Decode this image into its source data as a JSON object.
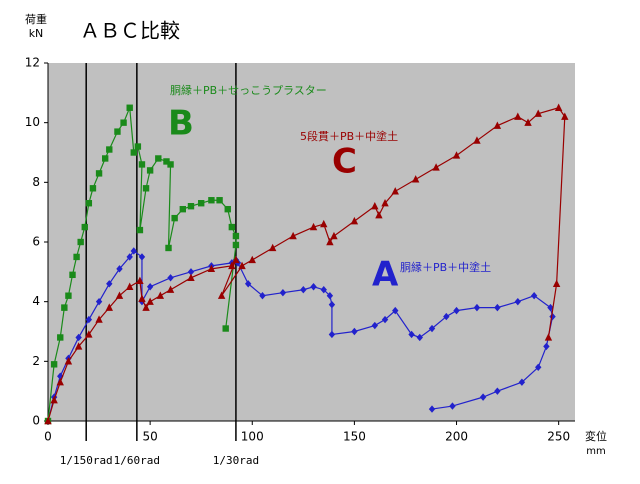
{
  "chart_data": {
    "type": "line",
    "title": "ＡＢＣ比較",
    "y_label": [
      "荷重",
      "kN"
    ],
    "x_label": [
      "変位",
      "mm"
    ],
    "xlim": [
      0,
      258
    ],
    "ylim": [
      0,
      12
    ],
    "xticks": [
      0,
      50,
      100,
      150,
      200,
      250
    ],
    "yticks": [
      0,
      2,
      4,
      6,
      8,
      10,
      12
    ],
    "grid": false,
    "reference_lines": [
      {
        "x": 18.7,
        "label": "1/150rad"
      },
      {
        "x": 43.5,
        "label": "1/60rad"
      },
      {
        "x": 92,
        "label": "1/30rad"
      }
    ],
    "annotations": [
      {
        "text": "胴縁＋PB＋せっこうプラスター",
        "color": "#1a8a1a"
      },
      {
        "text": "B",
        "color": "#1a8a1a"
      },
      {
        "text": "5段貫＋PB＋中塗土",
        "color": "#990000"
      },
      {
        "text": "C",
        "color": "#990000"
      },
      {
        "text": "胴縁＋PB＋中塗土",
        "color": "#2222cc"
      },
      {
        "text": "A",
        "color": "#2222cc"
      }
    ],
    "series": [
      {
        "name": "A",
        "color": "#2222cc",
        "marker": "diamond",
        "x": [
          0,
          3,
          6,
          10,
          15,
          20,
          25,
          30,
          35,
          40,
          42,
          46,
          46,
          50,
          60,
          70,
          80,
          90,
          92,
          93,
          98,
          105,
          115,
          125,
          130,
          135,
          138,
          139,
          139,
          150,
          160,
          165,
          170,
          178,
          182,
          188,
          195,
          200,
          210,
          220,
          230,
          238,
          246,
          247,
          244,
          240,
          232,
          220,
          213,
          198,
          188
        ],
        "values": [
          0,
          0.8,
          1.5,
          2.1,
          2.8,
          3.4,
          4.0,
          4.6,
          5.1,
          5.5,
          5.7,
          5.5,
          4.0,
          4.5,
          4.8,
          5.0,
          5.2,
          5.3,
          5.4,
          5.3,
          4.6,
          4.2,
          4.3,
          4.4,
          4.5,
          4.4,
          4.2,
          3.9,
          2.9,
          3.0,
          3.2,
          3.4,
          3.7,
          2.9,
          2.8,
          3.1,
          3.5,
          3.7,
          3.8,
          3.8,
          4.0,
          4.2,
          3.8,
          3.5,
          2.5,
          1.8,
          1.3,
          1.0,
          0.8,
          0.5,
          0.4
        ]
      },
      {
        "name": "B",
        "color": "#1a8a1a",
        "marker": "square",
        "x": [
          0,
          3,
          6,
          8,
          10,
          12,
          14,
          16,
          18,
          20,
          22,
          25,
          28,
          30,
          34,
          37,
          40,
          42,
          44,
          46,
          45,
          48,
          50,
          54,
          58,
          60,
          59,
          62,
          66,
          70,
          75,
          80,
          84,
          88,
          90,
          92,
          92,
          87
        ],
        "values": [
          0,
          1.9,
          2.8,
          3.8,
          4.2,
          4.9,
          5.5,
          6.0,
          6.5,
          7.3,
          7.8,
          8.3,
          8.8,
          9.1,
          9.7,
          10.0,
          10.5,
          9.0,
          9.2,
          8.6,
          6.4,
          7.8,
          8.4,
          8.8,
          8.7,
          8.6,
          5.8,
          6.8,
          7.1,
          7.2,
          7.3,
          7.4,
          7.4,
          7.1,
          6.5,
          6.2,
          5.9,
          3.1
        ]
      },
      {
        "name": "C",
        "color": "#990000",
        "marker": "triangle",
        "x": [
          0,
          3,
          6,
          10,
          15,
          20,
          25,
          30,
          35,
          40,
          45,
          46,
          48,
          50,
          55,
          60,
          70,
          80,
          90,
          92,
          85,
          95,
          100,
          110,
          120,
          130,
          135,
          138,
          140,
          150,
          160,
          162,
          165,
          170,
          180,
          190,
          200,
          210,
          220,
          230,
          235,
          240,
          250,
          253,
          249,
          245
        ],
        "values": [
          0,
          0.7,
          1.3,
          2.0,
          2.5,
          2.9,
          3.4,
          3.8,
          4.2,
          4.5,
          4.7,
          4.1,
          3.8,
          4.0,
          4.2,
          4.4,
          4.8,
          5.1,
          5.2,
          5.4,
          4.2,
          5.2,
          5.4,
          5.8,
          6.2,
          6.5,
          6.6,
          6.0,
          6.2,
          6.7,
          7.2,
          6.9,
          7.3,
          7.7,
          8.1,
          8.5,
          8.9,
          9.4,
          9.9,
          10.2,
          10.0,
          10.3,
          10.5,
          10.2,
          4.6,
          2.8
        ]
      }
    ]
  }
}
